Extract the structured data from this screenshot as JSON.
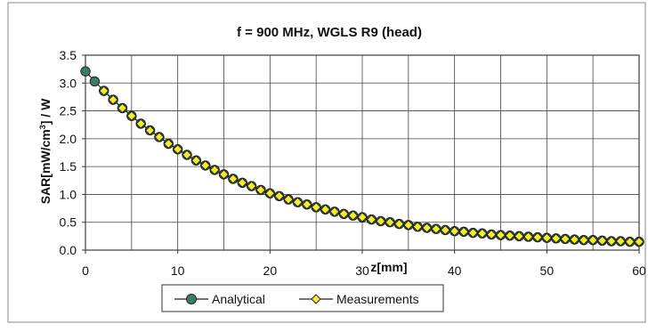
{
  "chart_data": {
    "type": "line",
    "title": "f = 900 MHz, WGLS R9 (head)",
    "xlabel": "z[mm]",
    "ylabel_main": "SAR[mW/cm",
    "ylabel_sup": "3",
    "ylabel_tail": "] / W",
    "xlim": [
      0,
      60
    ],
    "ylim": [
      0,
      3.5
    ],
    "x_ticks": [
      0,
      10,
      20,
      30,
      40,
      50,
      60
    ],
    "x_tick_labels": [
      "0",
      "10",
      "20",
      "30",
      "40",
      "50",
      "60"
    ],
    "y_ticks": [
      0,
      0.5,
      1.0,
      1.5,
      2.0,
      2.5,
      3.0,
      3.5
    ],
    "y_tick_labels": [
      "0.0",
      "0.5",
      "1.0",
      "1.5",
      "2.0",
      "2.5",
      "3.0",
      "3.5"
    ],
    "grid": true,
    "legend_position": "bottom-center",
    "series": [
      {
        "name": "Analytical",
        "color": "#3d7a6a",
        "marker": "circle",
        "x": [
          0,
          1,
          2,
          3,
          4,
          5,
          6,
          7,
          8,
          9,
          10,
          11,
          12,
          13,
          14,
          15,
          16,
          17,
          18,
          19,
          20,
          21,
          22,
          23,
          24,
          25,
          26,
          27,
          28,
          29,
          30,
          31,
          32,
          33,
          34,
          35,
          36,
          37,
          38,
          39,
          40,
          41,
          42,
          43,
          44,
          45,
          46,
          47,
          48,
          49,
          50,
          51,
          52,
          53,
          54,
          55,
          56,
          57,
          58,
          59,
          60
        ],
        "y": [
          3.21,
          3.03,
          2.86,
          2.7,
          2.55,
          2.41,
          2.27,
          2.15,
          2.03,
          1.91,
          1.81,
          1.71,
          1.61,
          1.52,
          1.44,
          1.36,
          1.28,
          1.21,
          1.15,
          1.08,
          1.02,
          0.97,
          0.91,
          0.86,
          0.82,
          0.77,
          0.73,
          0.69,
          0.65,
          0.62,
          0.59,
          0.55,
          0.52,
          0.5,
          0.47,
          0.45,
          0.42,
          0.4,
          0.38,
          0.36,
          0.34,
          0.33,
          0.31,
          0.3,
          0.28,
          0.27,
          0.26,
          0.25,
          0.24,
          0.23,
          0.22,
          0.21,
          0.2,
          0.19,
          0.18,
          0.18,
          0.17,
          0.16,
          0.16,
          0.15,
          0.15
        ]
      },
      {
        "name": "Measurements",
        "color": "#f3ee2a",
        "marker": "diamond",
        "x": [
          2,
          3,
          4,
          5,
          6,
          7,
          8,
          9,
          10,
          11,
          12,
          13,
          14,
          15,
          16,
          17,
          18,
          19,
          20,
          21,
          22,
          23,
          24,
          25,
          26,
          27,
          28,
          29,
          30,
          31,
          32,
          33,
          34,
          35,
          36,
          37,
          38,
          39,
          40,
          41,
          42,
          43,
          44,
          45,
          46,
          47,
          48,
          49,
          50,
          51,
          52,
          53,
          54,
          55,
          56,
          57,
          58,
          59,
          60
        ],
        "y": [
          2.86,
          2.7,
          2.55,
          2.41,
          2.27,
          2.15,
          2.03,
          1.91,
          1.81,
          1.71,
          1.61,
          1.52,
          1.44,
          1.36,
          1.28,
          1.21,
          1.15,
          1.08,
          1.02,
          0.97,
          0.91,
          0.86,
          0.82,
          0.77,
          0.73,
          0.69,
          0.65,
          0.62,
          0.59,
          0.55,
          0.52,
          0.5,
          0.47,
          0.45,
          0.42,
          0.4,
          0.38,
          0.36,
          0.34,
          0.33,
          0.31,
          0.3,
          0.28,
          0.27,
          0.26,
          0.25,
          0.24,
          0.23,
          0.22,
          0.21,
          0.2,
          0.19,
          0.18,
          0.18,
          0.17,
          0.16,
          0.16,
          0.15,
          0.15
        ]
      }
    ]
  }
}
